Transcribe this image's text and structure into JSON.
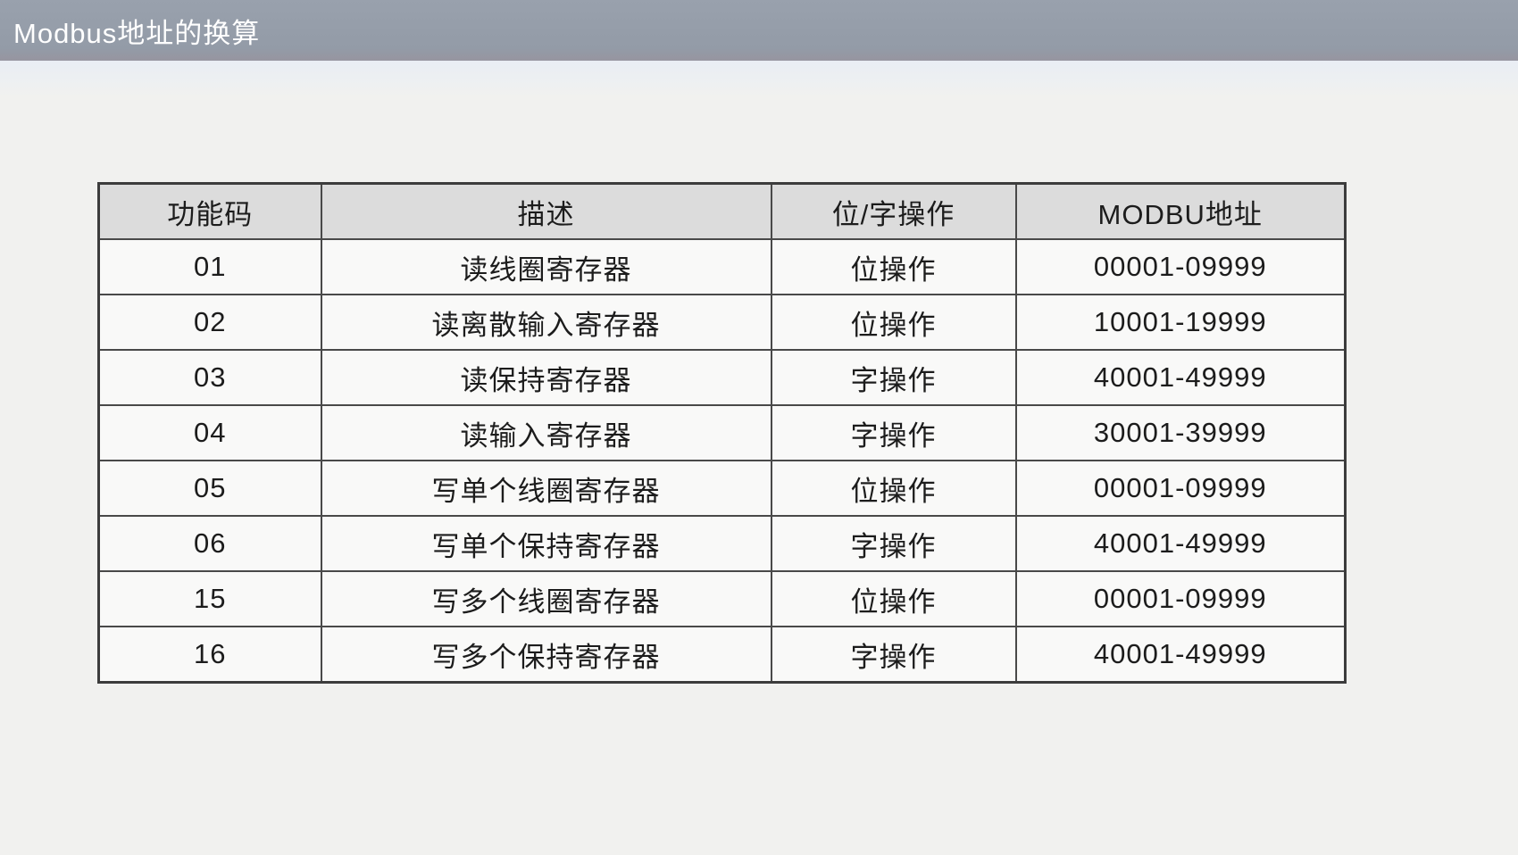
{
  "page": {
    "title": "Modbus地址的换算"
  },
  "table": {
    "headers": [
      "功能码",
      "描述",
      "位/字操作",
      "MODBU地址"
    ],
    "rows": [
      [
        "01",
        "读线圈寄存器",
        "位操作",
        "00001-09999"
      ],
      [
        "02",
        "读离散输入寄存器",
        "位操作",
        "10001-19999"
      ],
      [
        "03",
        "读保持寄存器",
        "字操作",
        "40001-49999"
      ],
      [
        "04",
        "读输入寄存器",
        "字操作",
        "30001-39999"
      ],
      [
        "05",
        "写单个线圈寄存器",
        "位操作",
        "00001-09999"
      ],
      [
        "06",
        "写单个保持寄存器",
        "字操作",
        "40001-49999"
      ],
      [
        "15",
        "写多个线圈寄存器",
        "位操作",
        "00001-09999"
      ],
      [
        "16",
        "写多个保持寄存器",
        "字操作",
        "40001-49999"
      ]
    ]
  },
  "colors": {
    "title_bar_bg": "#959da9",
    "title_text": "#ffffff",
    "page_bg": "#f1f1ef",
    "header_cell_bg": "#dcdcdc",
    "cell_bg": "#f9f9f8",
    "border": "#494949",
    "text": "#1c1c1c"
  }
}
